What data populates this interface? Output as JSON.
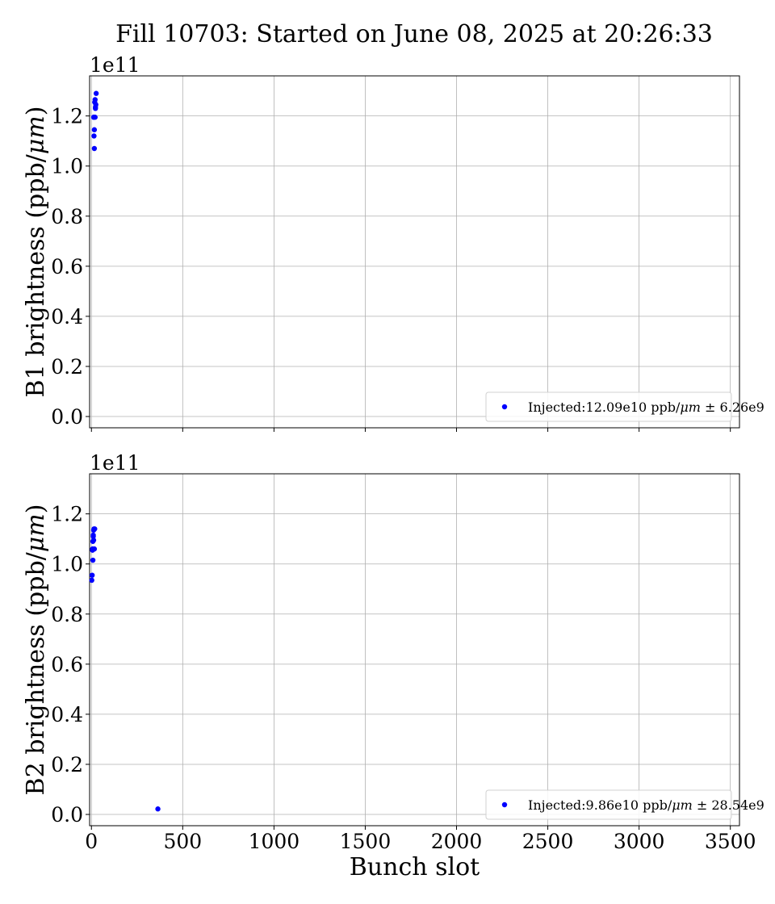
{
  "figure_title": "Fill 10703: Started on June 08, 2025 at 20:26:33",
  "chart_data": [
    {
      "type": "scatter",
      "ylabel": "B1 brightness (ppb/μm)",
      "ylabel_parts": [
        "B1 brightness (ppb/",
        "μm",
        ")"
      ],
      "xlabel": "",
      "offset_label": "1e11",
      "xlim": [
        -10,
        3550
      ],
      "ylim": [
        -0.045,
        1.36
      ],
      "x_ticks": [
        0,
        500,
        1000,
        1500,
        2000,
        2500,
        3000,
        3500
      ],
      "y_ticks": [
        0.0,
        0.2,
        0.4,
        0.6,
        0.8,
        1.0,
        1.2
      ],
      "y_tick_labels": [
        "0.0",
        "0.2",
        "0.4",
        "0.6",
        "0.8",
        "1.0",
        "1.2"
      ],
      "grid": true,
      "legend_position": "lower-right",
      "series": [
        {
          "name": "Injected:12.09e10 ppb/μm ± 6.26e9",
          "legend_parts": [
            "Injected:12.09e10 ppb/",
            "μm",
            " ± 6.26e9"
          ],
          "color": "#0000ff",
          "x": [
            12,
            14,
            16,
            18,
            20,
            22,
            24,
            26,
            16,
            20,
            22,
            14
          ],
          "y": [
            1.195,
            1.12,
            1.145,
            1.255,
            1.265,
            1.23,
            1.245,
            1.29,
            1.07,
            1.195,
            1.235,
            1.195
          ]
        }
      ]
    },
    {
      "type": "scatter",
      "ylabel": "B2 brightness (ppb/μm)",
      "ylabel_parts": [
        "B2 brightness (ppb/",
        "μm",
        ")"
      ],
      "xlabel": "Bunch slot",
      "offset_label": "1e11",
      "xlim": [
        -10,
        3550
      ],
      "ylim": [
        -0.045,
        1.36
      ],
      "x_ticks": [
        0,
        500,
        1000,
        1500,
        2000,
        2500,
        3000,
        3500
      ],
      "x_tick_labels": [
        "0",
        "500",
        "1000",
        "1500",
        "2000",
        "2500",
        "3000",
        "3500"
      ],
      "y_ticks": [
        0.0,
        0.2,
        0.4,
        0.6,
        0.8,
        1.0,
        1.2
      ],
      "y_tick_labels": [
        "0.0",
        "0.2",
        "0.4",
        "0.6",
        "0.8",
        "1.0",
        "1.2"
      ],
      "grid": true,
      "legend_position": "lower-right",
      "series": [
        {
          "name": "Injected:9.86e10 ppb/μm ± 28.54e9",
          "legend_parts": [
            "Injected:9.86e10 ppb/",
            "μm",
            " ± 28.54e9"
          ],
          "color": "#0000ff",
          "x": [
            2,
            4,
            6,
            8,
            10,
            12,
            14,
            16,
            8,
            12,
            18,
            10,
            6,
            364
          ],
          "y": [
            0.935,
            0.955,
            1.055,
            1.09,
            1.11,
            1.135,
            1.14,
            1.06,
            1.015,
            1.095,
            1.14,
            1.115,
            1.06,
            0.022
          ]
        }
      ]
    }
  ]
}
